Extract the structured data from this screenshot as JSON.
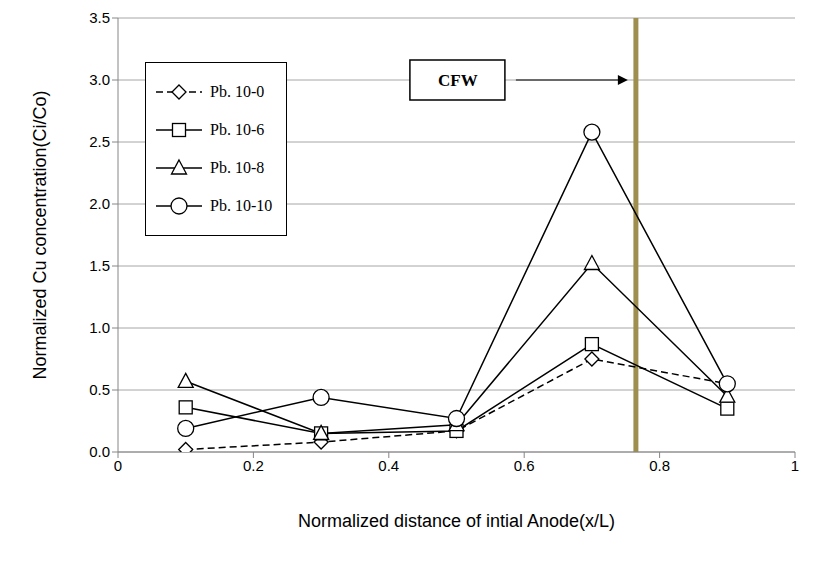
{
  "chart_data": {
    "type": "line",
    "x_label": "Normalized distance of intial Anode(x/L)",
    "y_label": "Normalized Cu concentration(Ci/Co)",
    "x": [
      0.1,
      0.3,
      0.5,
      0.7,
      0.9
    ],
    "series": [
      {
        "name": "Pb. 10-0",
        "color": "#000000",
        "marker": "diamond",
        "line_style": "dashed",
        "values": [
          0.02,
          0.08,
          0.17,
          0.75,
          0.55
        ]
      },
      {
        "name": "Pb. 10-6",
        "color": "#000000",
        "marker": "square",
        "line_style": "solid",
        "values": [
          0.36,
          0.15,
          0.17,
          0.87,
          0.35
        ]
      },
      {
        "name": "Pb. 10-8",
        "color": "#000000",
        "marker": "triangle",
        "line_style": "solid",
        "values": [
          0.57,
          0.15,
          0.22,
          1.52,
          0.45
        ]
      },
      {
        "name": "Pb. 10-10",
        "color": "#000000",
        "marker": "circle",
        "line_style": "solid",
        "values": [
          0.19,
          0.44,
          0.27,
          2.58,
          0.55
        ]
      }
    ],
    "xlim": [
      0,
      1
    ],
    "xticks": [
      0,
      0.2,
      0.4,
      0.6,
      0.8,
      1
    ],
    "ylim": [
      0,
      3.5
    ],
    "yticks": [
      {
        "value": 0,
        "label": "0.0"
      },
      0.5,
      {
        "value": 1,
        "label": "1.0"
      },
      1.5,
      {
        "value": 2,
        "label": "2.0"
      },
      2.5,
      {
        "value": 3,
        "label": "3.0"
      },
      3.5
    ],
    "grid": true,
    "legend": "upper left",
    "annotations": [
      {
        "text": "CFW",
        "x": 0.765,
        "color": "#9e8f4f"
      }
    ]
  }
}
